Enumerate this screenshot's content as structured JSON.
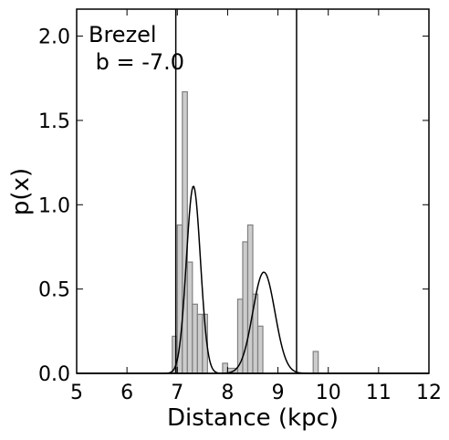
{
  "chart_data": {
    "type": "bar",
    "xlabel": "Distance (kpc)",
    "ylabel": "p(x)",
    "xlim": [
      5,
      12
    ],
    "ylim": [
      0,
      2.16
    ],
    "xticks": [
      5,
      6,
      7,
      8,
      9,
      10,
      11,
      12
    ],
    "yticks": [
      0.0,
      0.5,
      1.0,
      1.5,
      2.0
    ],
    "xtick_labels": [
      "5",
      "6",
      "7",
      "8",
      "9",
      "10",
      "11",
      "12"
    ],
    "ytick_labels": [
      "0.0",
      "0.5",
      "1.0",
      "1.5",
      "2.0"
    ],
    "annotation": {
      "line1": "Brezel",
      "line2": " b = -7.0"
    },
    "histogram": {
      "fill_color": "#cccccc",
      "edge_color": "#808080",
      "bins": [
        {
          "x0": 6.9,
          "x1": 7.0,
          "y": 0.22
        },
        {
          "x0": 7.0,
          "x1": 7.1,
          "y": 0.88
        },
        {
          "x0": 7.1,
          "x1": 7.2,
          "y": 1.67
        },
        {
          "x0": 7.2,
          "x1": 7.3,
          "y": 0.66
        },
        {
          "x0": 7.3,
          "x1": 7.4,
          "y": 0.41
        },
        {
          "x0": 7.4,
          "x1": 7.5,
          "y": 0.35
        },
        {
          "x0": 7.5,
          "x1": 7.6,
          "y": 0.35
        },
        {
          "x0": 7.6,
          "x1": 7.7,
          "y": 0.0
        },
        {
          "x0": 7.9,
          "x1": 8.0,
          "y": 0.06
        },
        {
          "x0": 8.0,
          "x1": 8.2,
          "y": 0.03
        },
        {
          "x0": 8.2,
          "x1": 8.3,
          "y": 0.44
        },
        {
          "x0": 8.3,
          "x1": 8.4,
          "y": 0.78
        },
        {
          "x0": 8.4,
          "x1": 8.5,
          "y": 0.88
        },
        {
          "x0": 8.5,
          "x1": 8.6,
          "y": 0.47
        },
        {
          "x0": 8.6,
          "x1": 8.7,
          "y": 0.28
        },
        {
          "x0": 9.7,
          "x1": 9.8,
          "y": 0.13
        }
      ]
    },
    "curves": [
      {
        "mu": 7.32,
        "sigma": 0.14,
        "peak": 1.11
      },
      {
        "mu": 8.72,
        "sigma": 0.22,
        "peak": 0.6
      }
    ],
    "vertical_lines": [
      6.97,
      9.37
    ]
  }
}
